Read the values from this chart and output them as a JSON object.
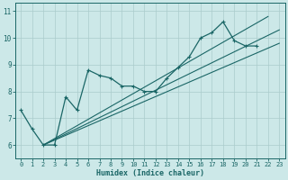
{
  "xlabel": "Humidex (Indice chaleur)",
  "xlim": [
    -0.5,
    23.5
  ],
  "ylim": [
    5.5,
    11.3
  ],
  "yticks": [
    6,
    7,
    8,
    9,
    10,
    11
  ],
  "xticks": [
    0,
    1,
    2,
    3,
    4,
    5,
    6,
    7,
    8,
    9,
    10,
    11,
    12,
    13,
    14,
    15,
    16,
    17,
    18,
    19,
    20,
    21,
    22,
    23
  ],
  "bg_color": "#cce8e8",
  "grid_color": "#aacccc",
  "line_color": "#1a6666",
  "series_marker": {
    "x": [
      0,
      1,
      2,
      3,
      4,
      5,
      6,
      7,
      8,
      9,
      10,
      11,
      12,
      13,
      14,
      15,
      16,
      17,
      18,
      19,
      20,
      21
    ],
    "y": [
      7.3,
      6.6,
      6.0,
      6.0,
      7.8,
      7.3,
      8.8,
      8.6,
      8.5,
      8.2,
      8.2,
      8.0,
      8.0,
      8.5,
      8.9,
      9.3,
      10.0,
      10.2,
      10.6,
      9.9,
      9.7,
      9.7
    ]
  },
  "series_straight": [
    {
      "x": [
        2,
        23
      ],
      "y": [
        6.0,
        9.8
      ]
    },
    {
      "x": [
        2,
        23
      ],
      "y": [
        6.0,
        10.3
      ]
    },
    {
      "x": [
        2,
        22
      ],
      "y": [
        6.0,
        10.8
      ]
    }
  ]
}
